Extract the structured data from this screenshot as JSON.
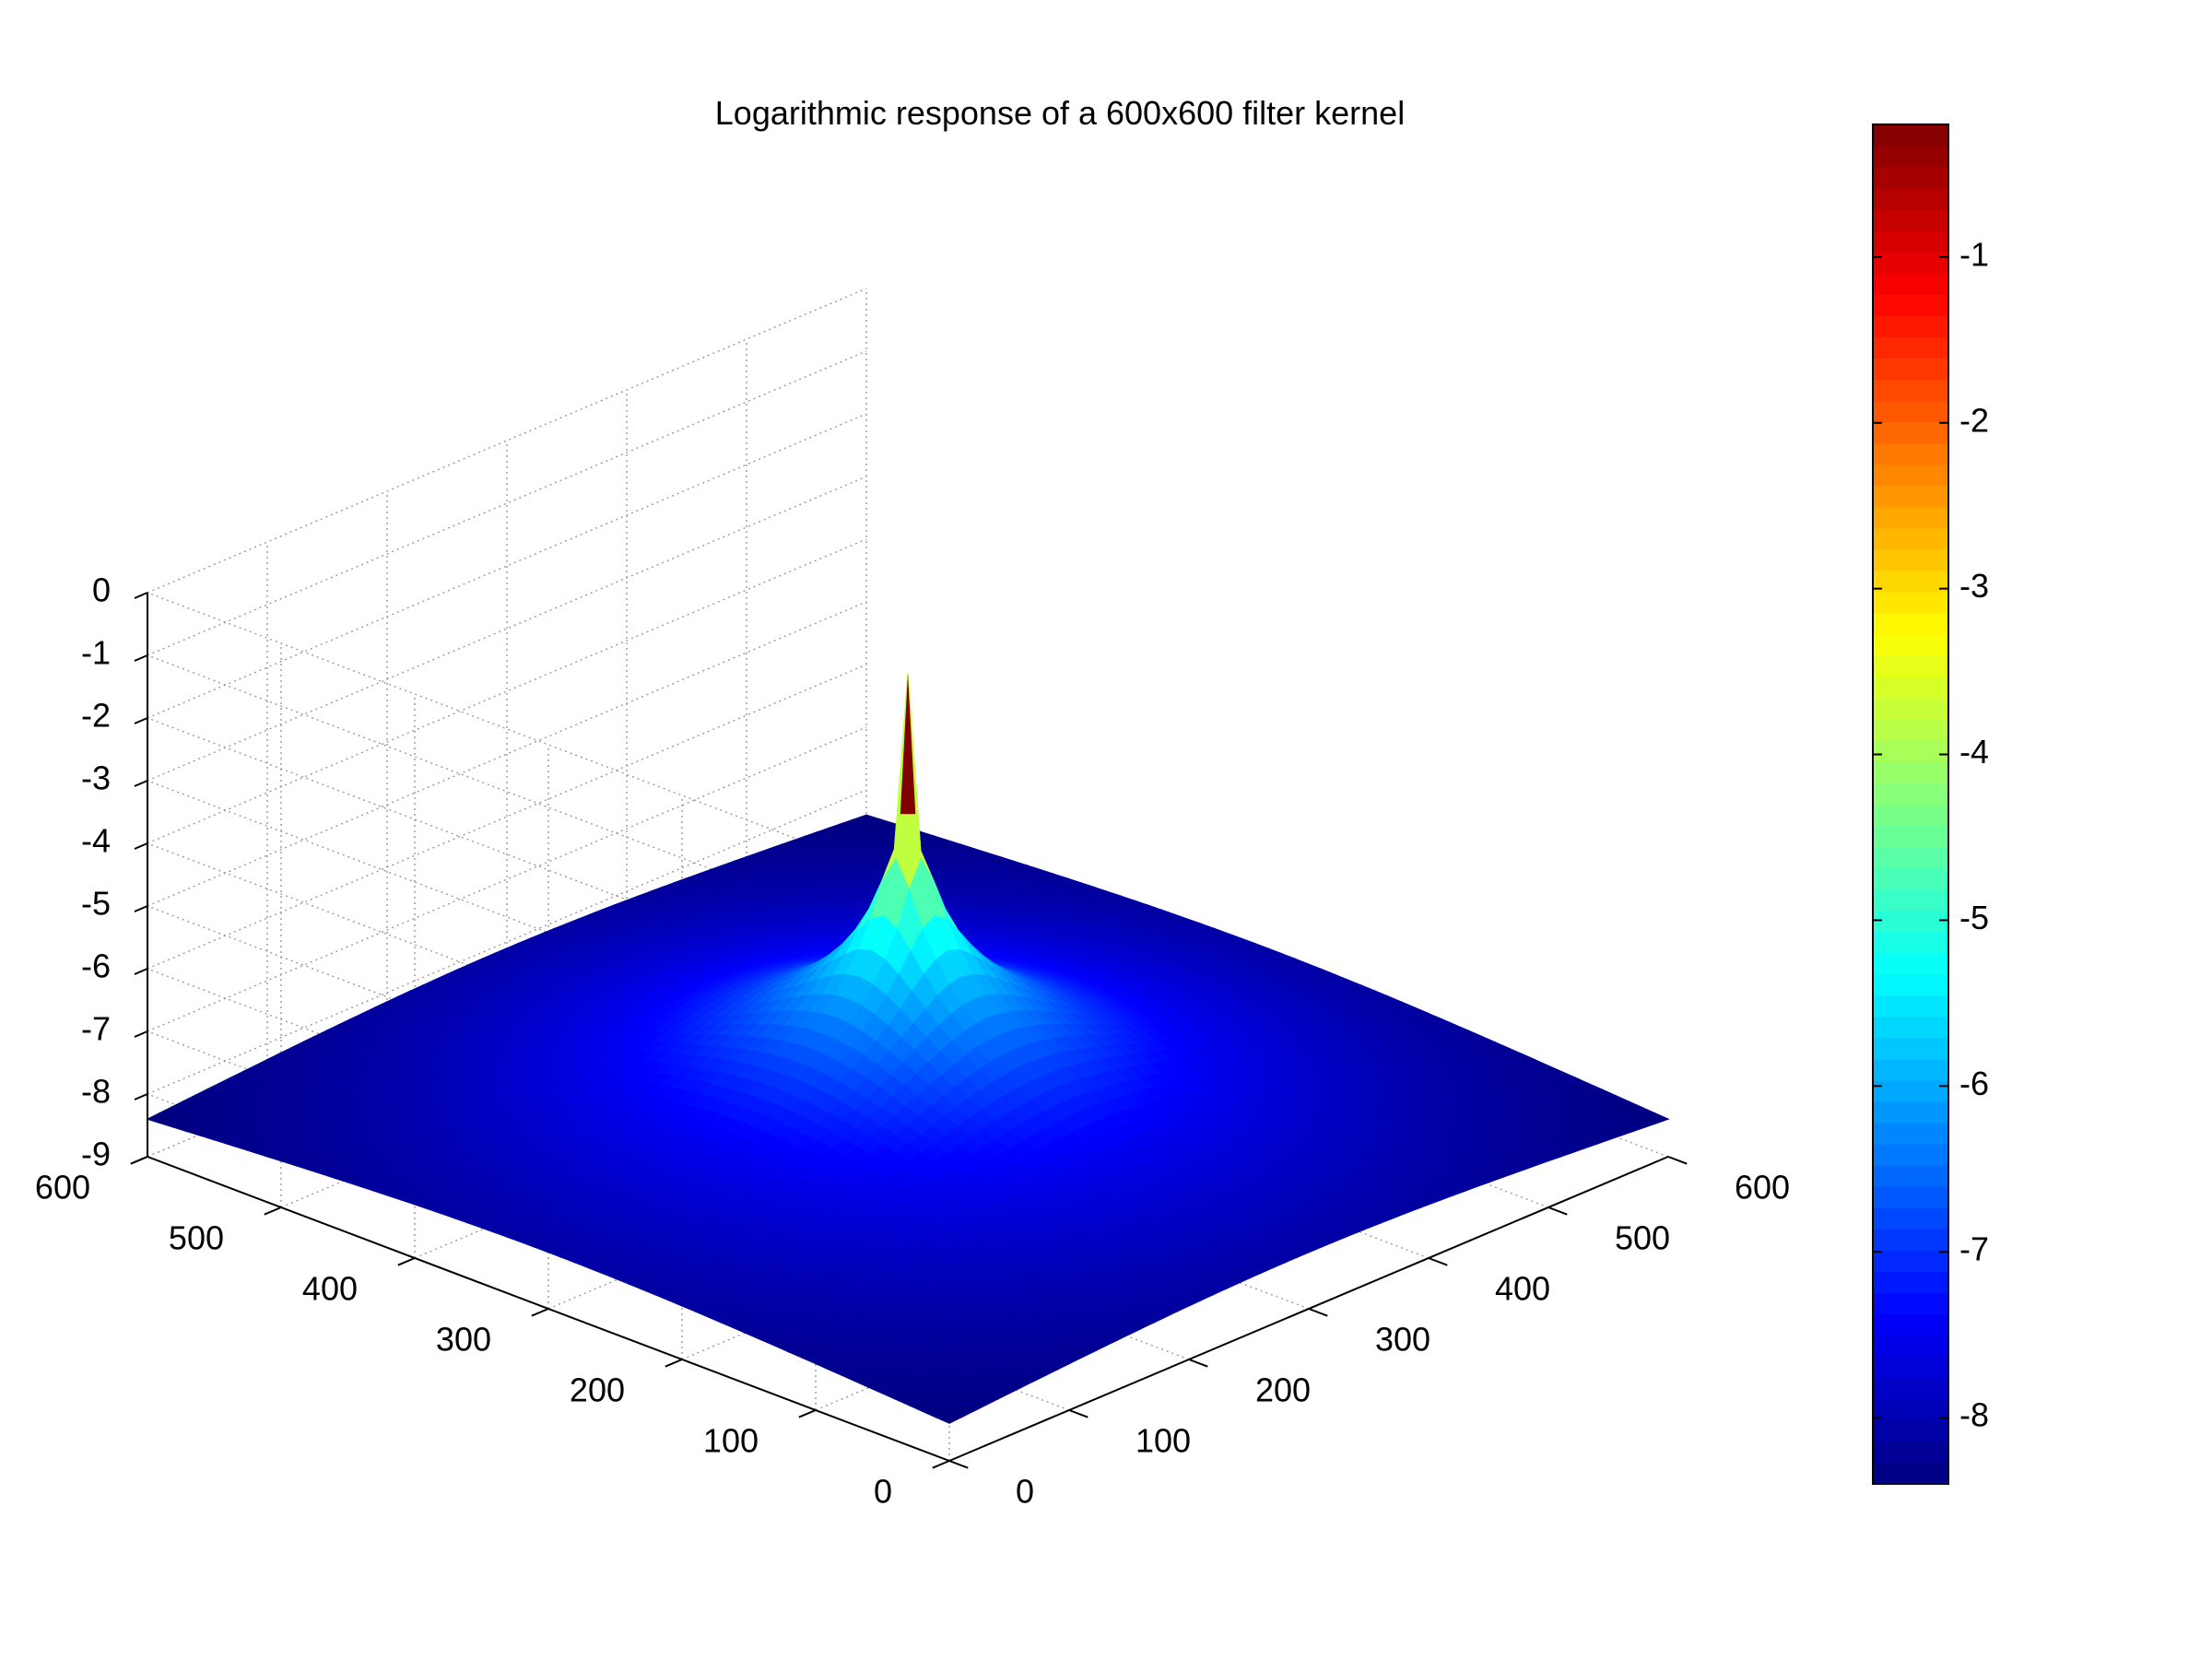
{
  "chart_data": {
    "type": "surface",
    "title": "Logarithmic response of a 600x600 filter kernel",
    "xlabel": "",
    "ylabel": "",
    "zlabel": "",
    "xlim": [
      0,
      600
    ],
    "ylim": [
      0,
      600
    ],
    "zlim": [
      -9,
      0
    ],
    "x_ticks": [
      "0",
      "100",
      "200",
      "300",
      "400",
      "500",
      "600"
    ],
    "y_ticks": [
      "0",
      "100",
      "200",
      "300",
      "400",
      "500",
      "600"
    ],
    "z_ticks": [
      "-9",
      "-8",
      "-7",
      "-6",
      "-5",
      "-4",
      "-3",
      "-2",
      "-1",
      "0"
    ],
    "grid": true,
    "colormap": "jet",
    "colorbar": {
      "range": [
        -8.4,
        -0.2
      ],
      "ticks": [
        "-8",
        "-7",
        "-6",
        "-5",
        "-4",
        "-3",
        "-2",
        "-1"
      ],
      "placement": "right"
    },
    "surface": {
      "peak": {
        "x": 300,
        "y": 300,
        "z": -1.3
      },
      "corner_z": -8.4,
      "description_points": [
        {
          "r": 0,
          "z": -1.3
        },
        {
          "r": 5,
          "z": -3.4
        },
        {
          "r": 20,
          "z": -5.0
        },
        {
          "r": 60,
          "z": -6.3
        },
        {
          "r": 150,
          "z": -7.4
        },
        {
          "r": 300,
          "z": -8.1
        },
        {
          "r": 424,
          "z": -8.4
        }
      ]
    }
  }
}
